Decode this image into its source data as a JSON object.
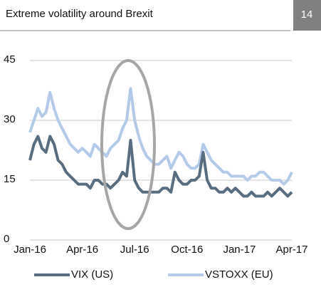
{
  "header": {
    "title": "Extreme volatility around Brexit",
    "page": "14"
  },
  "chart_data": {
    "type": "line",
    "categories": [
      "Jan-16",
      null,
      null,
      null,
      null,
      null,
      null,
      null,
      null,
      null,
      null,
      null,
      null,
      "Apr-16",
      null,
      null,
      null,
      null,
      null,
      null,
      null,
      null,
      null,
      null,
      null,
      null,
      "Jul-16",
      null,
      null,
      null,
      null,
      null,
      null,
      null,
      null,
      null,
      null,
      null,
      null,
      "Oct-16",
      null,
      null,
      null,
      null,
      null,
      null,
      null,
      null,
      null,
      null,
      null,
      null,
      "Jan-17",
      null,
      null,
      null,
      null,
      null,
      null,
      null,
      null,
      null,
      null,
      null,
      null,
      "Apr-17"
    ],
    "series": [
      {
        "name": "VIX (US)",
        "color": "#596d80",
        "values": [
          20,
          24,
          26,
          23,
          22,
          26,
          24,
          20,
          19,
          17,
          16,
          15,
          14,
          14,
          14,
          13,
          15,
          15,
          14,
          14,
          13,
          14,
          15,
          17,
          16,
          25,
          15,
          13,
          12,
          12,
          12,
          12,
          12,
          13,
          13,
          12,
          17,
          15,
          14,
          14,
          15,
          15,
          16,
          22,
          15,
          13,
          13,
          12,
          12,
          13,
          12,
          13,
          12,
          11,
          11,
          12,
          11,
          11,
          11,
          12,
          11,
          12,
          13,
          12,
          11,
          12
        ]
      },
      {
        "name": "VSTOXX (EU)",
        "color": "#b3cae8",
        "values": [
          27,
          30,
          33,
          31,
          32,
          37,
          33,
          30,
          28,
          26,
          24,
          23,
          22,
          23,
          22,
          21,
          24,
          23,
          22,
          21,
          23,
          24,
          25,
          28,
          30,
          38,
          30,
          26,
          23,
          21,
          20,
          19,
          19,
          20,
          21,
          18,
          20,
          22,
          21,
          19,
          18,
          18,
          19,
          24,
          22,
          20,
          19,
          18,
          17,
          17,
          16,
          16,
          16,
          16,
          15,
          16,
          16,
          17,
          17,
          16,
          15,
          15,
          15,
          14,
          15,
          17
        ]
      }
    ],
    "ylim": [
      0,
      45
    ],
    "yticks": [
      0,
      15,
      30,
      45
    ],
    "grid": true
  }
}
